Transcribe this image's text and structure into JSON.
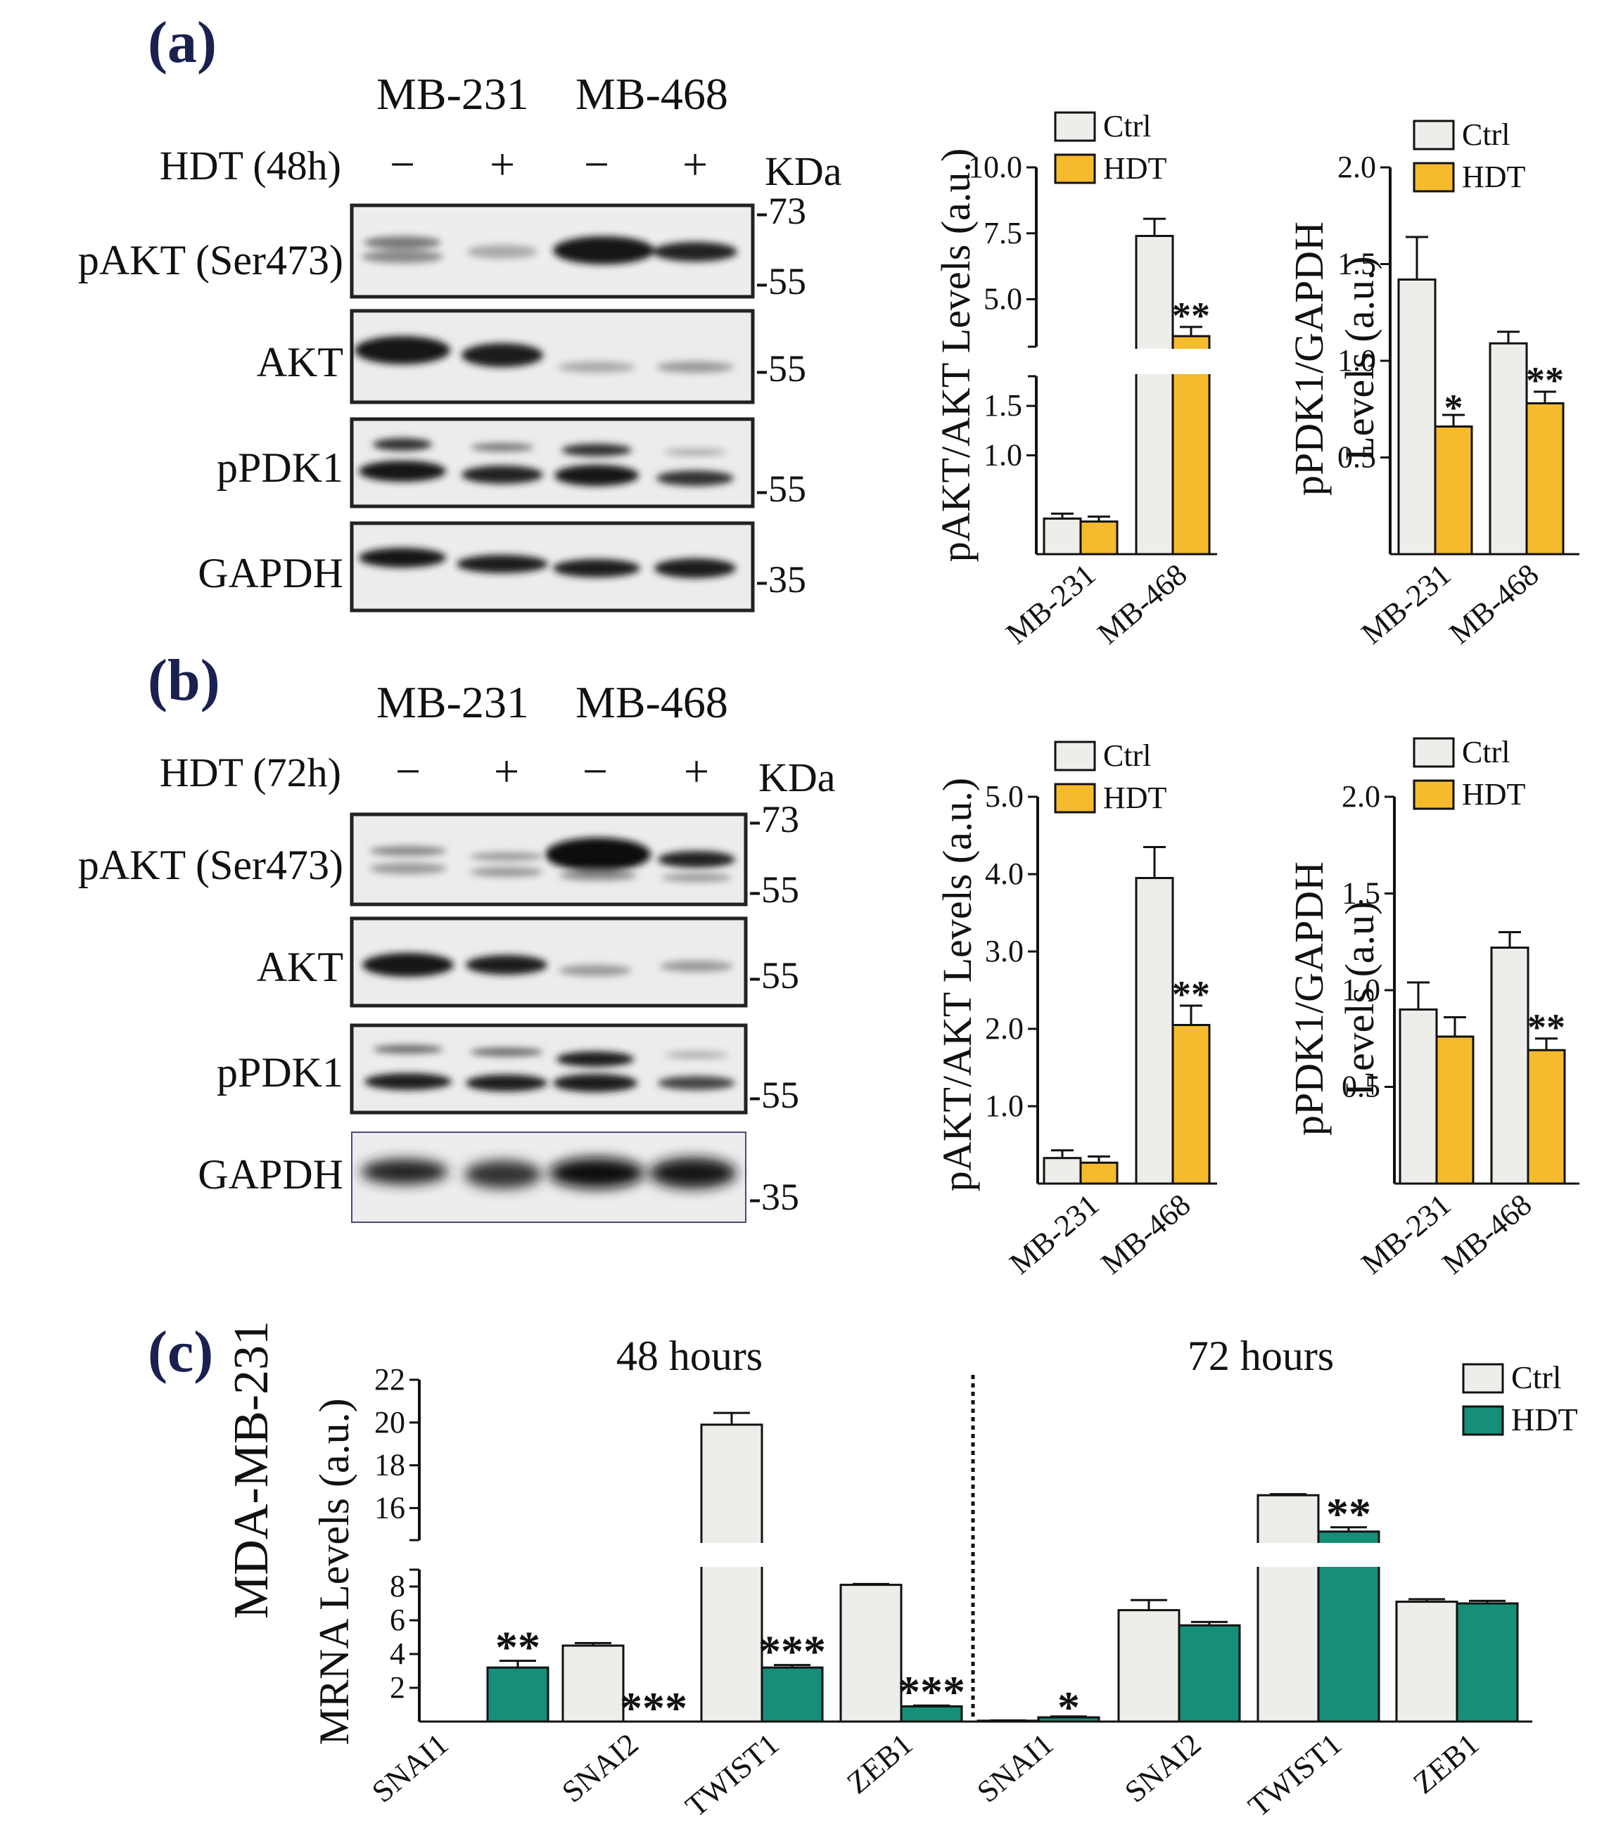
{
  "colors": {
    "ctrl": "#EDEDEA",
    "hdt_akt": "#F6BB2C",
    "hdt_mrna": "#168F78",
    "panel_label": "#1a2050",
    "blot_bg": "#ececec",
    "band": "#141414"
  },
  "panels": {
    "a": {
      "label": "(a)",
      "cell_line_1": "MB-231",
      "cell_line_2": "MB-468",
      "treatment_label": "HDT (48h)",
      "lane_signs": [
        "−",
        "+",
        "−",
        "+"
      ],
      "kda_label": "KDa",
      "blot_rows": [
        "pAKT (Ser473)",
        "AKT",
        "pPDK1",
        "GAPDH"
      ],
      "kda_markers": [
        "-73",
        "-55",
        "-55",
        "-55",
        "-35"
      ]
    },
    "b": {
      "label": "(b)",
      "cell_line_1": "MB-231",
      "cell_line_2": "MB-468",
      "treatment_label": "HDT (72h)",
      "lane_signs": [
        "−",
        "+",
        "−",
        "+"
      ],
      "kda_label": "KDa",
      "blot_rows": [
        "pAKT (Ser473)",
        "AKT",
        "pPDK1",
        "GAPDH"
      ],
      "kda_markers": [
        "-73",
        "-55",
        "-55",
        "-55",
        "-35"
      ]
    },
    "c": {
      "label": "(c)",
      "outer_ylabel": "MDA-MB-231"
    }
  },
  "chart_data": [
    {
      "id": "a-pakt",
      "type": "bar",
      "title": "",
      "ylabel": "pAKT/AKT Levels (a.u.)",
      "categories": [
        "MB-231",
        "MB-468"
      ],
      "axis_break": true,
      "lower_ylim": [
        0,
        1.8
      ],
      "upper_ylim": [
        3.2,
        10.0
      ],
      "lower_ticks": [
        "1.0",
        "1.5"
      ],
      "upper_ticks": [
        "5.0",
        "7.5",
        "10.0"
      ],
      "legend": [
        "Ctrl",
        "HDT"
      ],
      "series": [
        {
          "name": "Ctrl",
          "values": [
            0.36,
            7.4
          ],
          "errors": [
            0.05,
            0.65
          ],
          "sig": [
            "",
            ""
          ]
        },
        {
          "name": "HDT",
          "values": [
            0.33,
            3.6
          ],
          "errors": [
            0.05,
            0.35
          ],
          "sig": [
            "",
            "**"
          ]
        }
      ]
    },
    {
      "id": "a-ppdk1",
      "type": "bar",
      "title": "",
      "ylabel": "pPDK1/GAPDH Levels (a.u.)",
      "ylabel_lines": [
        "pPDK1/GAPDH",
        "Levels (a.u.)"
      ],
      "categories": [
        "MB-231",
        "MB-468"
      ],
      "ylim": [
        0,
        2.0
      ],
      "ticks": [
        "0.5",
        "1.0",
        "1.5",
        "2.0"
      ],
      "legend": [
        "Ctrl",
        "HDT"
      ],
      "series": [
        {
          "name": "Ctrl",
          "values": [
            1.42,
            1.09
          ],
          "errors": [
            0.22,
            0.06
          ],
          "sig": [
            "",
            ""
          ]
        },
        {
          "name": "HDT",
          "values": [
            0.66,
            0.78
          ],
          "errors": [
            0.06,
            0.06
          ],
          "sig": [
            "*",
            "**"
          ]
        }
      ]
    },
    {
      "id": "b-pakt",
      "type": "bar",
      "title": "",
      "ylabel": "pAKT/AKT Levels (a.u.)",
      "categories": [
        "MB-231",
        "MB-468"
      ],
      "ylim": [
        0,
        5.0
      ],
      "ticks": [
        "1.0",
        "2.0",
        "3.0",
        "4.0",
        "5.0"
      ],
      "legend": [
        "Ctrl",
        "HDT"
      ],
      "series": [
        {
          "name": "Ctrl",
          "values": [
            0.33,
            3.95
          ],
          "errors": [
            0.1,
            0.4
          ],
          "sig": [
            "",
            ""
          ]
        },
        {
          "name": "HDT",
          "values": [
            0.27,
            2.05
          ],
          "errors": [
            0.08,
            0.25
          ],
          "sig": [
            "",
            "**"
          ]
        }
      ]
    },
    {
      "id": "b-ppdk1",
      "type": "bar",
      "title": "",
      "ylabel": "pPDK1/GAPDH Levels (a.u)",
      "ylabel_lines": [
        "pPDK1/GAPDH",
        "Levels (a.u)"
      ],
      "categories": [
        "MB-231",
        "MB-468"
      ],
      "ylim": [
        0,
        2.0
      ],
      "ticks": [
        "0.5",
        "1.0",
        "1.5",
        "2.0"
      ],
      "legend": [
        "Ctrl",
        "HDT"
      ],
      "series": [
        {
          "name": "Ctrl",
          "values": [
            0.9,
            1.22
          ],
          "errors": [
            0.14,
            0.08
          ],
          "sig": [
            "",
            ""
          ]
        },
        {
          "name": "HDT",
          "values": [
            0.76,
            0.69
          ],
          "errors": [
            0.1,
            0.06
          ],
          "sig": [
            "",
            "**"
          ]
        }
      ]
    },
    {
      "id": "c-mrna",
      "type": "bar",
      "title": "",
      "ylabel": "MRNA Levels (a.u.)",
      "group_titles": [
        "48 hours",
        "72 hours"
      ],
      "categories": [
        "SNAI1",
        "SNAI2",
        "TWIST1",
        "ZEB1",
        "SNAI1",
        "SNAI2",
        "TWIST1",
        "ZEB1"
      ],
      "axis_break": true,
      "lower_ylim": [
        0,
        9
      ],
      "upper_ylim": [
        14.5,
        22
      ],
      "lower_ticks": [
        "2",
        "4",
        "6",
        "8"
      ],
      "upper_ticks": [
        "16",
        "18",
        "20",
        "22"
      ],
      "legend": [
        "Ctrl",
        "HDT"
      ],
      "series": [
        {
          "name": "Ctrl",
          "values": [
            0,
            4.5,
            19.9,
            8.1,
            0.05,
            6.6,
            16.6,
            7.1
          ],
          "errors": [
            0,
            0.15,
            0.55,
            0.05,
            0.02,
            0.6,
            0.05,
            0.15
          ],
          "sig": [
            "",
            "",
            "",
            "",
            "",
            "",
            "",
            ""
          ]
        },
        {
          "name": "HDT",
          "values": [
            3.2,
            0,
            3.2,
            0.9,
            0.25,
            5.7,
            14.9,
            7.0
          ],
          "errors": [
            0.4,
            0,
            0.15,
            0.05,
            0.05,
            0.2,
            0.2,
            0.15
          ],
          "sig": [
            "**",
            "***",
            "***",
            "***",
            "*",
            "",
            "**",
            ""
          ]
        }
      ]
    }
  ]
}
